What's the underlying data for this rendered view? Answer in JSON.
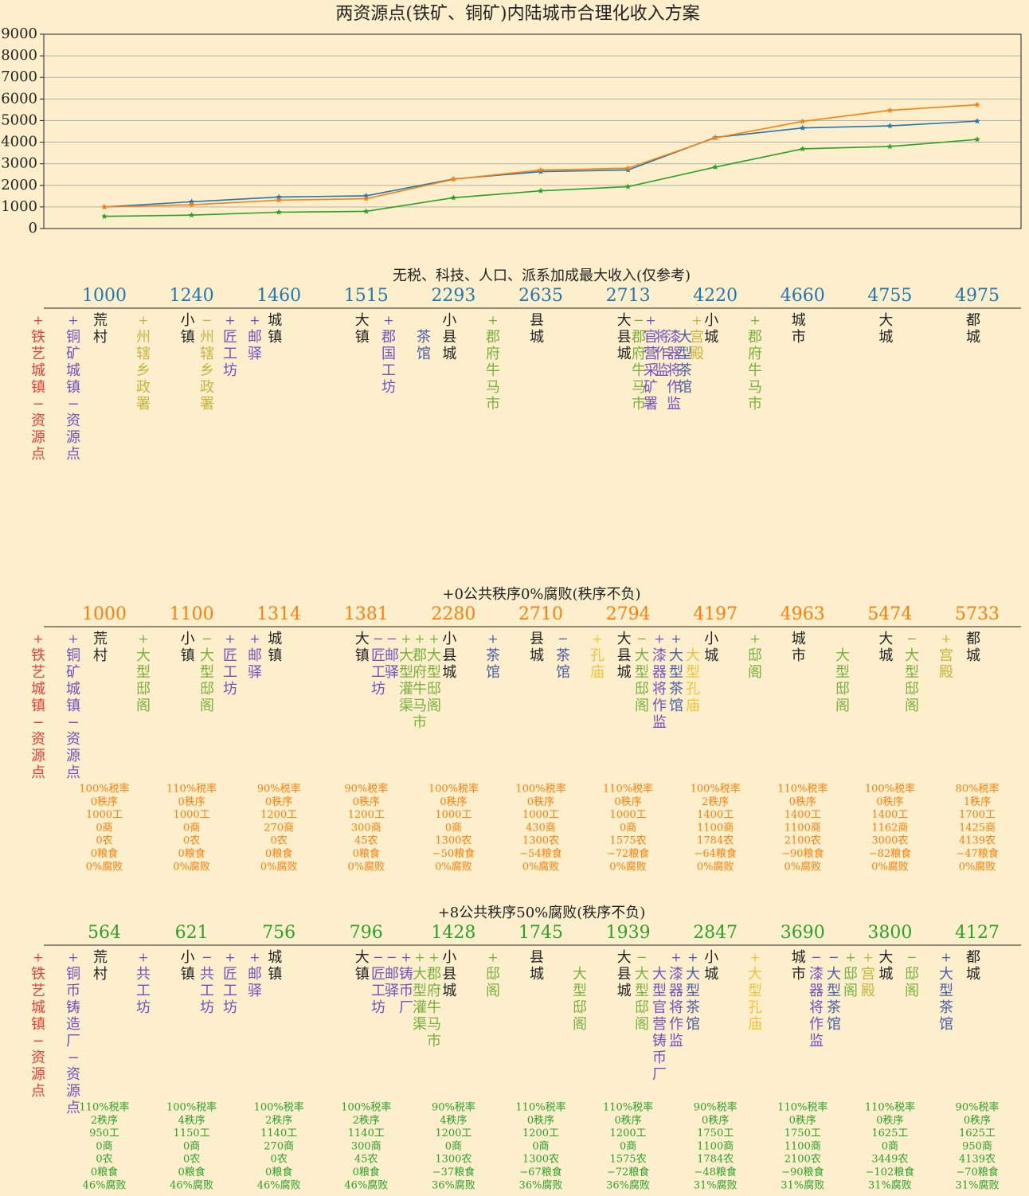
{
  "chart_data": {
    "type": "line",
    "title": "两资源点(铁矿、铜矿)内陆城市合理化收入方案",
    "categories": [
      null,
      null,
      null,
      null,
      null,
      null,
      null,
      null,
      null,
      null,
      null
    ],
    "series": [
      {
        "color": "#1f77b4",
        "values": [
          1000,
          1240,
          1460,
          1515,
          2293,
          2635,
          2713,
          4220,
          4660,
          4755,
          4975
        ]
      },
      {
        "color": "#ff7f0e",
        "values": [
          1000,
          1100,
          1314,
          1381,
          2280,
          2710,
          2794,
          4197,
          4963,
          5474,
          5733
        ]
      },
      {
        "color": "#2ca02c",
        "values": [
          564,
          621,
          756,
          796,
          1428,
          1745,
          1939,
          2847,
          3690,
          3800,
          4127
        ]
      }
    ],
    "ylim": [
      0,
      9000
    ],
    "yticks": [
      0,
      1000,
      2000,
      3000,
      4000,
      5000,
      6000,
      7000,
      8000,
      9000
    ],
    "grid": true
  },
  "city_types": [
    "荒村",
    "小镇",
    "城镇",
    "大镇",
    "小县城",
    "县城",
    "大县城",
    "小城",
    "城市",
    "大城",
    "都城"
  ],
  "panels": [
    {
      "title": "无税、科技、人口、派系加成最大收入(仅参考)",
      "items": [
        {
          "sign": "+",
          "text": "铁艺城镇−资源点",
          "color": "#e8403a"
        },
        {
          "sign": "+",
          "text": "铜矿城镇−资源点",
          "color": "#7050c0"
        },
        {
          "sign": "+",
          "text": "州辖乡政署",
          "color": "#c8b442"
        },
        {
          "sign": "−",
          "text": "州辖乡政署",
          "color": "#c8b442"
        },
        {
          "sign": "+",
          "text": "匠工坊",
          "color": "#7050c0"
        },
        {
          "sign": "+",
          "text": "邮驿",
          "color": "#7050c0"
        },
        {
          "sign": "+",
          "text": "郡国工坊",
          "color": "#7050c0"
        },
        {
          "text": "茶馆",
          "color": "#4a5fa8"
        },
        {
          "sign": "+",
          "text": "郡府牛马市",
          "color": "#78b040"
        },
        {
          "sign": "−",
          "text": "郡府牛马市",
          "color": "#78b040"
        },
        {
          "sign": "+",
          "text": "官营采矿署",
          "color": "#7050c0"
        },
        {
          "text": "将作监",
          "color": "#7050c0"
        },
        {
          "text": "漆器将作监",
          "color": "#7050c0"
        },
        {
          "text": "大型茶馆",
          "color": "#4a5fa8"
        },
        {
          "sign": "+",
          "text": "宫殿",
          "color": "#c8b442"
        },
        {
          "sign": "+",
          "text": "郡府牛马市",
          "color": "#78b040"
        }
      ]
    },
    {
      "title": "+0公共秩序0%腐败(秩序不负)",
      "items": [
        {
          "sign": "+",
          "text": "铁艺城镇−资源点",
          "color": "#e8403a"
        },
        {
          "sign": "+",
          "text": "铜矿城镇−资源点",
          "color": "#7050c0"
        },
        {
          "sign": "+",
          "text": "大型邸阁",
          "color": "#78b040"
        },
        {
          "sign": "−",
          "text": "大型邸阁",
          "color": "#78b040"
        },
        {
          "sign": "+",
          "text": "匠工坊",
          "color": "#7050c0"
        },
        {
          "sign": "+",
          "text": "邮驿",
          "color": "#7050c0"
        },
        {
          "sign": "−",
          "text": "匠工坊",
          "color": "#7050c0"
        },
        {
          "sign": "−",
          "text": "邮驿",
          "color": "#7050c0"
        },
        {
          "sign": "+",
          "text": "大型灌渠",
          "color": "#78b040"
        },
        {
          "sign": "+",
          "text": "郡府牛马市",
          "color": "#78b040"
        },
        {
          "sign": "+",
          "text": "大型邸阁",
          "color": "#78b040"
        },
        {
          "sign": "+",
          "text": "茶馆",
          "color": "#4a5fa8"
        },
        {
          "sign": "−",
          "text": "茶馆",
          "color": "#4a5fa8"
        },
        {
          "sign": "+",
          "text": "孔庙",
          "color": "#f0c43a"
        },
        {
          "sign": "−",
          "text": "大型邸阁",
          "color": "#78b040"
        },
        {
          "sign": "+",
          "text": "漆器将作监",
          "color": "#7050c0"
        },
        {
          "sign": "+",
          "text": "大型茶馆",
          "color": "#4a5fa8"
        },
        {
          "text": "大型孔庙",
          "color": "#f0c43a"
        },
        {
          "sign": "+",
          "text": "邸阁",
          "color": "#78b040"
        },
        {
          "text": "大型邸阁",
          "color": "#78b040"
        },
        {
          "sign": "−",
          "text": "大型邸阁",
          "color": "#78b040"
        },
        {
          "sign": "+",
          "text": "宫殿",
          "color": "#c8b442"
        }
      ],
      "stats": [
        [
          "100%税率",
          "0秩序",
          "1000工",
          "0商",
          "0农",
          "0粮食",
          "0%腐败"
        ],
        [
          "110%税率",
          "0秩序",
          "1000工",
          "0商",
          "0农",
          "0粮食",
          "0%腐败"
        ],
        [
          "90%税率",
          "0秩序",
          "1200工",
          "270商",
          "0农",
          "0粮食",
          "0%腐败"
        ],
        [
          "90%税率",
          "0秩序",
          "1200工",
          "300商",
          "45农",
          "0粮食",
          "0%腐败"
        ],
        [
          "100%税率",
          "0秩序",
          "1000工",
          "0商",
          "1300农",
          "−50粮食",
          "0%腐败"
        ],
        [
          "100%税率",
          "0秩序",
          "1000工",
          "430商",
          "1300农",
          "−54粮食",
          "0%腐败"
        ],
        [
          "110%税率",
          "0秩序",
          "1000工",
          "0商",
          "1575农",
          "−72粮食",
          "0%腐败"
        ],
        [
          "100%税率",
          "2秩序",
          "1400工",
          "1100商",
          "1784农",
          "−64粮食",
          "0%腐败"
        ],
        [
          "110%税率",
          "0秩序",
          "1400工",
          "1100商",
          "2100农",
          "−90粮食",
          "0%腐败"
        ],
        [
          "100%税率",
          "0秩序",
          "1400工",
          "1162商",
          "3000农",
          "−82粮食",
          "0%腐败"
        ],
        [
          "80%税率",
          "1秩序",
          "1700工",
          "1425商",
          "4139农",
          "−47粮食",
          "0%腐败"
        ]
      ]
    },
    {
      "title": "+8公共秩序50%腐败(秩序不负)",
      "items": [
        {
          "sign": "+",
          "text": "铁艺城镇−资源点",
          "color": "#e8403a"
        },
        {
          "sign": "+",
          "text": "铜币铸造厂−资源点",
          "color": "#7050c0"
        },
        {
          "sign": "+",
          "text": "共工坊",
          "color": "#7050c0"
        },
        {
          "sign": "−",
          "text": "共工坊",
          "color": "#7050c0"
        },
        {
          "sign": "+",
          "text": "匠工坊",
          "color": "#7050c0"
        },
        {
          "sign": "+",
          "text": "邮驿",
          "color": "#7050c0"
        },
        {
          "sign": "−",
          "text": "匠工坊",
          "color": "#7050c0"
        },
        {
          "sign": "−",
          "text": "邮驿",
          "color": "#7050c0"
        },
        {
          "sign": "+",
          "text": "铸币厂",
          "color": "#7050c0"
        },
        {
          "sign": "+",
          "text": "大型灌渠",
          "color": "#78b040"
        },
        {
          "sign": "+",
          "text": "郡府牛马市",
          "color": "#78b040"
        },
        {
          "sign": "+",
          "text": "邸阁",
          "color": "#78b040"
        },
        {
          "text": "大型邸阁",
          "color": "#78b040"
        },
        {
          "sign": "−",
          "text": "大型邸阁",
          "color": "#78b040"
        },
        {
          "text": "大型官营铸币厂",
          "color": "#7050c0"
        },
        {
          "sign": "+",
          "text": "漆器将作监",
          "color": "#7050c0"
        },
        {
          "sign": "+",
          "text": "大型茶馆",
          "color": "#4a5fa8"
        },
        {
          "sign": "+",
          "text": "大型孔庙",
          "color": "#f0c43a"
        },
        {
          "sign": "−",
          "text": "漆器将作监",
          "color": "#7050c0"
        },
        {
          "sign": "−",
          "text": "大型茶馆",
          "color": "#4a5fa8"
        },
        {
          "sign": "+",
          "text": "邸阁",
          "color": "#78b040"
        },
        {
          "sign": "+",
          "text": "宫殿",
          "color": "#c8b442"
        },
        {
          "sign": "−",
          "text": "邸阁",
          "color": "#78b040"
        },
        {
          "sign": "+",
          "text": "大型茶馆",
          "color": "#4a5fa8"
        }
      ],
      "stats": [
        [
          "110%税率",
          "2秩序",
          "950工",
          "0商",
          "0农",
          "0粮食",
          "46%腐败"
        ],
        [
          "100%税率",
          "4秩序",
          "1150工",
          "0商",
          "0农",
          "0粮食",
          "46%腐败"
        ],
        [
          "100%税率",
          "2秩序",
          "1140工",
          "270商",
          "0农",
          "0粮食",
          "46%腐败"
        ],
        [
          "100%税率",
          "2秩序",
          "1140工",
          "300商",
          "45农",
          "0粮食",
          "46%腐败"
        ],
        [
          "90%税率",
          "4秩序",
          "1200工",
          "0商",
          "1300农",
          "−37粮食",
          "36%腐败"
        ],
        [
          "110%税率",
          "0秩序",
          "1200工",
          "0商",
          "1300农",
          "−67粮食",
          "36%腐败"
        ],
        [
          "110%税率",
          "0秩序",
          "1200工",
          "0商",
          "1575农",
          "−72粮食",
          "36%腐败"
        ],
        [
          "90%税率",
          "0秩序",
          "1750工",
          "1100商",
          "1784农",
          "−48粮食",
          "31%腐败"
        ],
        [
          "110%税率",
          "0秩序",
          "1750工",
          "1100商",
          "2100农",
          "−90粮食",
          "31%腐败"
        ],
        [
          "110%税率",
          "0秩序",
          "1625工",
          "0商",
          "3449农",
          "−102粮食",
          "31%腐败"
        ],
        [
          "90%税率",
          "0秩序",
          "1625工",
          "950商",
          "4139农",
          "−70粮食",
          "31%腐败"
        ]
      ]
    }
  ]
}
